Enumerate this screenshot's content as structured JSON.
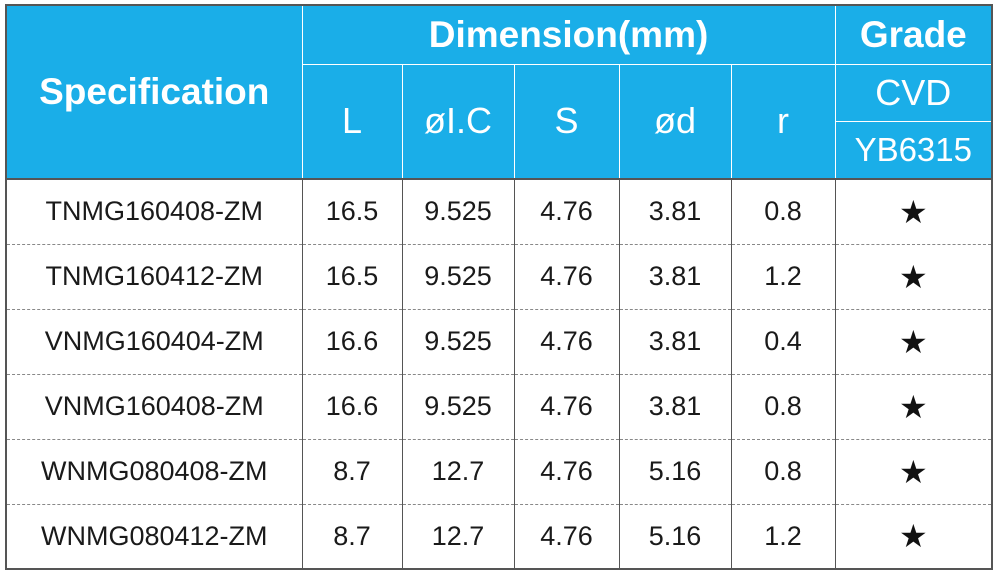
{
  "header": {
    "specification": "Specification",
    "dimension": "Dimension(mm)",
    "grade": "Grade",
    "cvd": "CVD",
    "grade_code": "YB6315",
    "columns": [
      "L",
      "øI.C",
      "S",
      "ød",
      "r"
    ]
  },
  "rows": [
    {
      "spec": "TNMG160408-ZM",
      "L": "16.5",
      "ic": "9.525",
      "s": "4.76",
      "d": "3.81",
      "r": "0.8",
      "grade": "★"
    },
    {
      "spec": "TNMG160412-ZM",
      "L": "16.5",
      "ic": "9.525",
      "s": "4.76",
      "d": "3.81",
      "r": "1.2",
      "grade": "★"
    },
    {
      "spec": "VNMG160404-ZM",
      "L": "16.6",
      "ic": "9.525",
      "s": "4.76",
      "d": "3.81",
      "r": "0.4",
      "grade": "★"
    },
    {
      "spec": "VNMG160408-ZM",
      "L": "16.6",
      "ic": "9.525",
      "s": "4.76",
      "d": "3.81",
      "r": "0.8",
      "grade": "★"
    },
    {
      "spec": "WNMG080408-ZM",
      "L": "8.7",
      "ic": "12.7",
      "s": "4.76",
      "d": "5.16",
      "r": "0.8",
      "grade": "★"
    },
    {
      "spec": "WNMG080412-ZM",
      "L": "8.7",
      "ic": "12.7",
      "s": "4.76",
      "d": "5.16",
      "r": "1.2",
      "grade": "★"
    }
  ],
  "colors": {
    "header_bg": "#1aaee8",
    "header_text": "#ffffff"
  }
}
